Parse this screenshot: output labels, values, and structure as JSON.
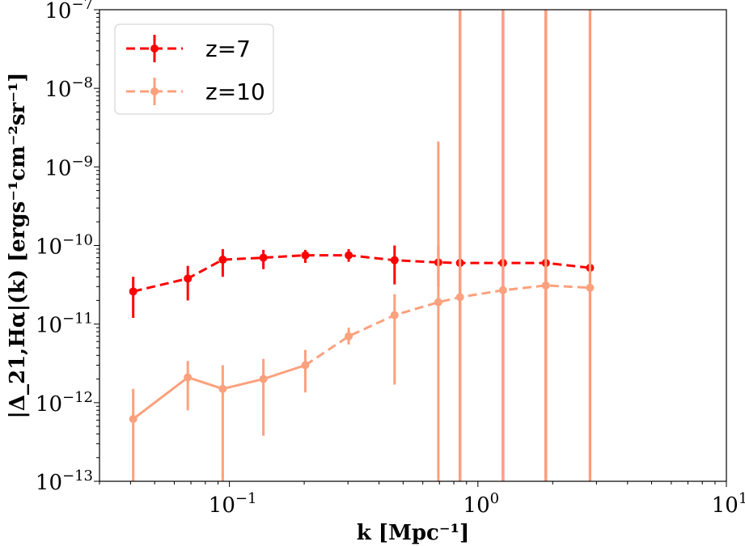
{
  "chart_data": {
    "type": "line",
    "xscale": "log",
    "yscale": "log",
    "xlim": [
      0.03,
      10
    ],
    "ylim": [
      1e-13,
      1e-07
    ],
    "xlabel": "k [Mpc⁻¹]",
    "ylabel": "|Δ_21,Hα|(k) [ergs⁻¹cm⁻²sr⁻¹]",
    "x_ticks": [
      {
        "value": 0.1,
        "base": "10",
        "exp": "−1"
      },
      {
        "value": 1,
        "base": "10",
        "exp": "0"
      },
      {
        "value": 10,
        "base": "10",
        "exp": "1"
      }
    ],
    "y_ticks": [
      {
        "value": 1e-13,
        "base": "10",
        "exp": "−13"
      },
      {
        "value": 1e-12,
        "base": "10",
        "exp": "−12"
      },
      {
        "value": 1e-11,
        "base": "10",
        "exp": "−11"
      },
      {
        "value": 1e-10,
        "base": "10",
        "exp": "−10"
      },
      {
        "value": 1e-09,
        "base": "10",
        "exp": "−9"
      },
      {
        "value": 1e-08,
        "base": "10",
        "exp": "−8"
      },
      {
        "value": 1e-07,
        "base": "10",
        "exp": "−7"
      }
    ],
    "series": [
      {
        "name": "z=7",
        "color": "#ff0000",
        "line_style": "dashed",
        "x": [
          0.041,
          0.068,
          0.094,
          0.137,
          0.202,
          0.302,
          0.462,
          0.693,
          0.847,
          1.262,
          1.876,
          2.826
        ],
        "y": [
          2.6e-11,
          3.8e-11,
          6.6e-11,
          7e-11,
          7.5e-11,
          7.5e-11,
          6.5e-11,
          6.1e-11,
          6e-11,
          6e-11,
          6e-11,
          5.2e-11
        ],
        "err_low": [
          1.2e-11,
          2e-11,
          4e-11,
          5e-11,
          6e-11,
          6.2e-11,
          3.2e-11,
          3e-11,
          1e-13,
          1e-13,
          1e-13,
          1e-13
        ],
        "err_high": [
          4e-11,
          5.5e-11,
          9e-11,
          8.8e-11,
          8.8e-11,
          9e-11,
          1e-10,
          1e-10,
          1e-07,
          1e-07,
          1e-07,
          1e-07
        ]
      },
      {
        "name": "z=10",
        "color": "#fca17d",
        "line_style": "solid_then_dashed",
        "x": [
          0.041,
          0.068,
          0.094,
          0.137,
          0.202,
          0.302,
          0.462,
          0.693,
          0.847,
          1.262,
          1.876,
          2.826
        ],
        "y": [
          6.2e-13,
          2.1e-12,
          1.5e-12,
          2e-12,
          3e-12,
          7e-12,
          1.3e-11,
          1.9e-11,
          2.2e-11,
          2.7e-11,
          3.1e-11,
          2.9e-11
        ],
        "err_low": [
          1e-13,
          8e-13,
          1e-13,
          3.8e-13,
          1.35e-12,
          5.5e-12,
          1.7e-12,
          1e-13,
          1e-13,
          1e-13,
          1e-13,
          1e-13
        ],
        "err_high": [
          1.5e-12,
          3.4e-12,
          3e-12,
          3.6e-12,
          4.7e-12,
          9e-12,
          2.4e-11,
          2.1e-09,
          1e-07,
          1e-07,
          1e-07,
          1e-07
        ]
      }
    ],
    "legend": {
      "placement": "upper-left",
      "entries": [
        "z=7",
        "z=10"
      ]
    }
  }
}
